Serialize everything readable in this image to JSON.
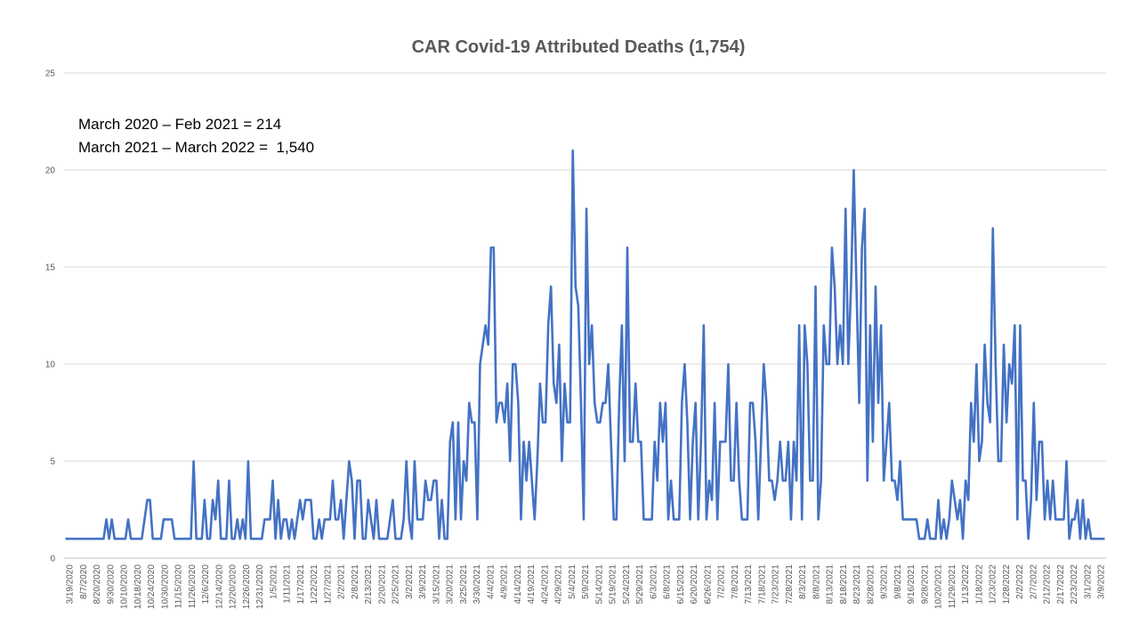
{
  "chart_data": {
    "type": "line",
    "title": "CAR Covid-19 Attributed Deaths (1,754)",
    "annotations": [
      "March 2020 – Feb 2021 = 214",
      "March 2021 – March 2022 =  1,540"
    ],
    "ylim": [
      0,
      25
    ],
    "yticks": [
      0,
      5,
      10,
      15,
      20,
      25
    ],
    "grid": true,
    "legend": "none",
    "series_color": "#4472C4",
    "x_tick_labels": [
      "3/19/2020",
      "8/7/2020",
      "8/20/2020",
      "9/30/2020",
      "10/10/2020",
      "10/18/2020",
      "10/24/2020",
      "10/30/2020",
      "11/15/2020",
      "11/26/2020",
      "12/6/2020",
      "12/14/2020",
      "12/20/2020",
      "12/26/2020",
      "12/31/2020",
      "1/5/2021",
      "1/11/2021",
      "1/17/2021",
      "1/22/2021",
      "1/27/2021",
      "2/2/2021",
      "2/8/2021",
      "2/13/2021",
      "2/20/2021",
      "2/25/2021",
      "3/2/2021",
      "3/9/2021",
      "3/15/2021",
      "3/20/2021",
      "3/25/2021",
      "3/30/2021",
      "4/4/2021",
      "4/9/2021",
      "4/14/2021",
      "4/19/2021",
      "4/24/2021",
      "4/29/2021",
      "5/4/2021",
      "5/9/2021",
      "5/14/2021",
      "5/19/2021",
      "5/24/2021",
      "5/29/2021",
      "6/3/2021",
      "6/8/2021",
      "6/15/2021",
      "6/20/2021",
      "6/26/2021",
      "7/2/2021",
      "7/8/2021",
      "7/13/2021",
      "7/18/2021",
      "7/23/2021",
      "7/28/2021",
      "8/3/2021",
      "8/8/2021",
      "8/13/2021",
      "8/18/2021",
      "8/23/2021",
      "8/28/2021",
      "9/3/2021",
      "9/8/2021",
      "9/16/2021",
      "9/28/2021",
      "10/20/2021",
      "11/29/2021",
      "1/13/2022",
      "1/18/2022",
      "1/23/2022",
      "1/28/2022",
      "2/2/2022",
      "2/7/2022",
      "2/12/2022",
      "2/17/2022",
      "2/23/2022",
      "3/1/2022",
      "3/9/2022"
    ],
    "values": [
      1,
      1,
      1,
      1,
      1,
      1,
      1,
      1,
      1,
      1,
      1,
      1,
      1,
      1,
      1,
      2,
      1,
      2,
      1,
      1,
      1,
      1,
      1,
      2,
      1,
      1,
      1,
      1,
      1,
      2,
      3,
      3,
      1,
      1,
      1,
      1,
      2,
      2,
      2,
      2,
      1,
      1,
      1,
      1,
      1,
      1,
      1,
      5,
      1,
      1,
      1,
      3,
      1,
      1,
      3,
      2,
      4,
      1,
      1,
      1,
      4,
      1,
      1,
      2,
      1,
      2,
      1,
      5,
      1,
      1,
      1,
      1,
      1,
      2,
      2,
      2,
      4,
      1,
      3,
      1,
      2,
      2,
      1,
      2,
      1,
      2,
      3,
      2,
      3,
      3,
      3,
      1,
      1,
      2,
      1,
      2,
      2,
      2,
      4,
      2,
      2,
      3,
      1,
      3,
      5,
      4,
      1,
      4,
      4,
      1,
      1,
      3,
      2,
      1,
      3,
      1,
      1,
      1,
      1,
      2,
      3,
      1,
      1,
      1,
      2,
      5,
      2,
      1,
      5,
      2,
      2,
      2,
      4,
      3,
      3,
      4,
      4,
      1,
      3,
      1,
      1,
      6,
      7,
      2,
      7,
      2,
      5,
      4,
      8,
      7,
      7,
      2,
      10,
      11,
      12,
      11,
      16,
      16,
      7,
      8,
      8,
      7,
      9,
      5,
      10,
      10,
      8,
      2,
      6,
      4,
      6,
      4,
      2,
      5,
      9,
      7,
      7,
      12,
      14,
      9,
      8,
      11,
      5,
      9,
      7,
      7,
      21,
      14,
      13,
      8,
      2,
      18,
      10,
      12,
      8,
      7,
      7,
      8,
      8,
      10,
      6,
      2,
      2,
      8,
      12,
      5,
      16,
      6,
      6,
      9,
      6,
      6,
      2,
      2,
      2,
      2,
      6,
      4,
      8,
      6,
      8,
      2,
      4,
      2,
      2,
      2,
      8,
      10,
      7,
      2,
      6,
      8,
      2,
      6,
      12,
      2,
      4,
      3,
      8,
      2,
      6,
      6,
      6,
      10,
      4,
      4,
      8,
      4,
      2,
      2,
      2,
      8,
      8,
      6,
      2,
      6,
      10,
      8,
      4,
      4,
      3,
      4,
      6,
      4,
      4,
      6,
      2,
      6,
      4,
      12,
      2,
      12,
      10,
      4,
      4,
      14,
      2,
      4,
      12,
      10,
      10,
      16,
      14,
      10,
      12,
      10,
      18,
      10,
      14,
      20,
      14,
      8,
      16,
      18,
      4,
      12,
      6,
      14,
      8,
      12,
      4,
      6,
      8,
      4,
      4,
      3,
      5,
      2,
      2,
      2,
      2,
      2,
      2,
      1,
      1,
      1,
      2,
      1,
      1,
      1,
      3,
      1,
      2,
      1,
      2,
      4,
      3,
      2,
      3,
      1,
      4,
      3,
      8,
      6,
      10,
      5,
      6,
      11,
      8,
      7,
      17,
      10,
      5,
      5,
      11,
      7,
      10,
      9,
      12,
      2,
      12,
      4,
      4,
      1,
      3,
      8,
      3,
      6,
      6,
      2,
      4,
      2,
      4,
      2,
      2,
      2,
      2,
      5,
      1,
      2,
      2,
      3,
      1,
      3,
      1,
      2,
      1,
      1,
      1,
      1,
      1,
      1
    ]
  }
}
